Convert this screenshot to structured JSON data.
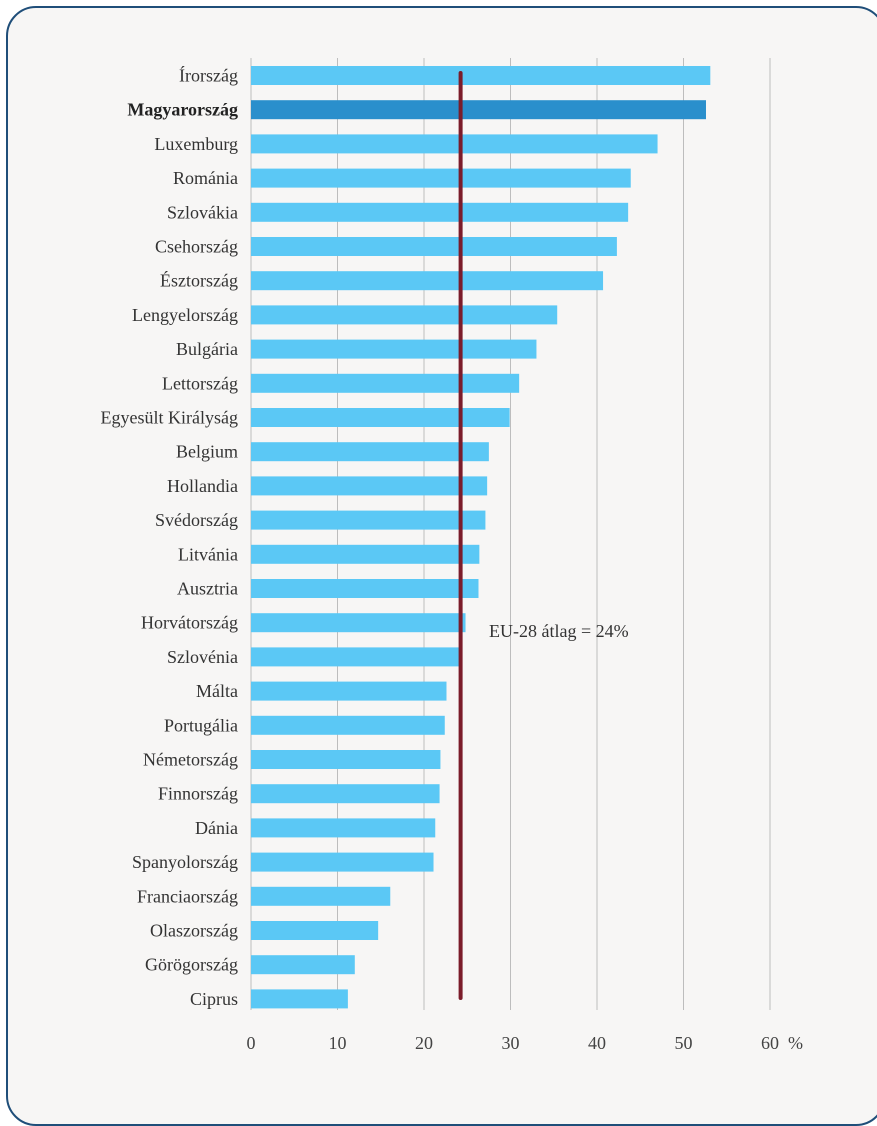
{
  "chart_data": {
    "type": "bar",
    "orientation": "horizontal",
    "title": "",
    "xlabel": "",
    "ylabel": "",
    "unit_label": "%",
    "xlim": [
      0,
      60
    ],
    "xticks": [
      0,
      10,
      20,
      30,
      40,
      50,
      60
    ],
    "grid": "vertical",
    "highlight_category": "Magyarország",
    "colors": {
      "bar": "#5bc8f5",
      "highlight": "#2a8fcc",
      "average_line": "#7b1c2a",
      "grid": "#bdbdbd"
    },
    "categories": [
      "Írország",
      "Magyarország",
      "Luxemburg",
      "Románia",
      "Szlovákia",
      "Csehország",
      "Észtország",
      "Lengyelország",
      "Bulgária",
      "Lettország",
      "Egyesült Királyság",
      "Belgium",
      "Hollandia",
      "Svédország",
      "Litvánia",
      "Ausztria",
      "Horvátország",
      "Szlovénia",
      "Málta",
      "Portugália",
      "Németország",
      "Finnország",
      "Dánia",
      "Spanyolország",
      "Franciaország",
      "Olaszország",
      "Görögország",
      "Ciprus"
    ],
    "values": [
      53.1,
      52.6,
      47.0,
      43.9,
      43.6,
      42.3,
      40.7,
      35.4,
      33.0,
      31.0,
      29.9,
      27.5,
      27.3,
      27.1,
      26.4,
      26.3,
      24.8,
      24.1,
      22.6,
      22.4,
      21.9,
      21.8,
      21.3,
      21.1,
      16.1,
      14.7,
      12.0,
      11.2
    ],
    "average": {
      "value": 24,
      "label": "EU-28 átlag = 24%"
    }
  }
}
